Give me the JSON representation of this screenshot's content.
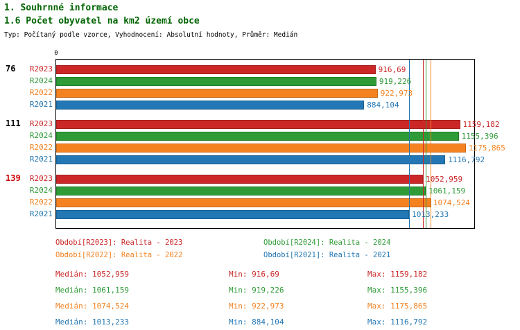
{
  "header": {
    "title1": "1. Souhrnné informace",
    "title2": "1.6 Počet obyvatel na km2 území obce",
    "subtitle": "Typ: Počítaný podle vzorce, Vyhodnocení: Absolutní hodnoty, Průměr: Medián"
  },
  "colors": {
    "title": "#006400",
    "R2023": "#cb2727",
    "R2024": "#2e9b36",
    "R2022": "#f58220",
    "R2021": "#2277b4",
    "group_label_default": "#000000",
    "group_label_alert": "#cc0000"
  },
  "chart_data": {
    "type": "bar",
    "orientation": "horizontal",
    "title": "1.6 Počet obyvatel na km2 území obce",
    "axis": {
      "min": 0,
      "max": 1200,
      "origin_label": "0"
    },
    "legend_position": "bottom",
    "series_order": [
      "R2023",
      "R2024",
      "R2022",
      "R2021"
    ],
    "groups": [
      {
        "label": "76",
        "label_color": "#000000",
        "bars": [
          {
            "series": "R2023",
            "value": 916.69,
            "value_label": "916,69"
          },
          {
            "series": "R2024",
            "value": 919.226,
            "value_label": "919,226"
          },
          {
            "series": "R2022",
            "value": 922.973,
            "value_label": "922,973"
          },
          {
            "series": "R2021",
            "value": 884.104,
            "value_label": "884,104"
          }
        ]
      },
      {
        "label": "111",
        "label_color": "#000000",
        "bars": [
          {
            "series": "R2023",
            "value": 1159.182,
            "value_label": "1159,182"
          },
          {
            "series": "R2024",
            "value": 1155.396,
            "value_label": "1155,396"
          },
          {
            "series": "R2022",
            "value": 1175.865,
            "value_label": "1175,865"
          },
          {
            "series": "R2021",
            "value": 1116.792,
            "value_label": "1116,792"
          }
        ]
      },
      {
        "label": "139",
        "label_color": "#cc0000",
        "bars": [
          {
            "series": "R2023",
            "value": 1052.959,
            "value_label": "1052,959"
          },
          {
            "series": "R2024",
            "value": 1061.159,
            "value_label": "1061,159"
          },
          {
            "series": "R2022",
            "value": 1074.524,
            "value_label": "1074,524"
          },
          {
            "series": "R2021",
            "value": 1013.233,
            "value_label": "1013,233"
          }
        ]
      }
    ],
    "median_lines": [
      {
        "series": "R2023",
        "value": 1052.959
      },
      {
        "series": "R2024",
        "value": 1061.159
      },
      {
        "series": "R2022",
        "value": 1074.524
      },
      {
        "series": "R2021",
        "value": 1013.233
      }
    ]
  },
  "legend": [
    {
      "series": "R2023",
      "label": "Období[R2023]: Realita - 2023",
      "col": 0,
      "row": 0
    },
    {
      "series": "R2024",
      "label": "Období[R2024]: Realita - 2024",
      "col": 1,
      "row": 0
    },
    {
      "series": "R2022",
      "label": "Období[R2022]: Realita - 2022",
      "col": 0,
      "row": 1
    },
    {
      "series": "R2021",
      "label": "Období[R2021]: Realita - 2021",
      "col": 1,
      "row": 1
    }
  ],
  "stats": [
    {
      "series": "R2023",
      "median": "Medián: 1052,959",
      "min": "Min: 916,69",
      "max": "Max: 1159,182"
    },
    {
      "series": "R2024",
      "median": "Medián: 1061,159",
      "min": "Min: 919,226",
      "max": "Max: 1155,396"
    },
    {
      "series": "R2022",
      "median": "Medián: 1074,524",
      "min": "Min: 922,973",
      "max": "Max: 1175,865"
    },
    {
      "series": "R2021",
      "median": "Medián: 1013,233",
      "min": "Min: 884,104",
      "max": "Max: 1116,792"
    }
  ]
}
